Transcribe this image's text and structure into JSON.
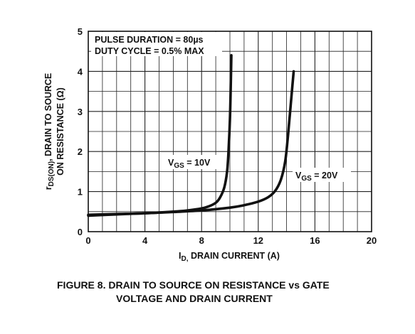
{
  "chart_data": {
    "type": "line",
    "caption_line1": "FIGURE 8.  DRAIN TO SOURCE ON RESISTANCE vs GATE",
    "caption_line2": "VOLTAGE AND DRAIN CURRENT",
    "xlabel_main": "I",
    "xlabel_sub": "D,",
    "xlabel_rest": " DRAIN CURRENT (A)",
    "ylabel_line1_r": "r",
    "ylabel_line1_sub": "DS(ON)",
    "ylabel_line1_rest": ", DRAIN TO SOURCE",
    "ylabel_line2": "ON RESISTANCE (Ω)",
    "xlim": [
      0,
      20
    ],
    "ylim": [
      0,
      5
    ],
    "xticks": [
      0,
      4,
      8,
      12,
      16,
      20
    ],
    "yticks": [
      0,
      1,
      2,
      3,
      4,
      5
    ],
    "grid": true,
    "annotation_line1": "PULSE DURATION = 80µs",
    "annotation_line2": "DUTY CYCLE = 0.5% MAX",
    "series": [
      {
        "name": "VGS = 10V",
        "label_main": "V",
        "label_sub": "GS",
        "label_rest": " = 10V",
        "x": [
          0,
          2,
          4,
          6,
          7,
          8,
          8.5,
          9,
          9.3,
          9.6,
          9.8,
          9.9,
          10.0,
          10.05,
          10.1
        ],
        "y": [
          0.42,
          0.44,
          0.46,
          0.5,
          0.53,
          0.58,
          0.63,
          0.72,
          0.85,
          1.1,
          1.5,
          2.0,
          2.8,
          3.5,
          4.4
        ]
      },
      {
        "name": "VGS = 20V",
        "label_main": "V",
        "label_sub": "GS",
        "label_rest": " = 20V",
        "x": [
          0,
          2,
          4,
          6,
          8,
          10,
          11,
          12,
          12.7,
          13.2,
          13.6,
          13.9,
          14.1,
          14.3,
          14.5
        ],
        "y": [
          0.4,
          0.43,
          0.46,
          0.49,
          0.53,
          0.6,
          0.66,
          0.75,
          0.86,
          1.02,
          1.3,
          1.75,
          2.4,
          3.2,
          4.0
        ]
      }
    ]
  }
}
